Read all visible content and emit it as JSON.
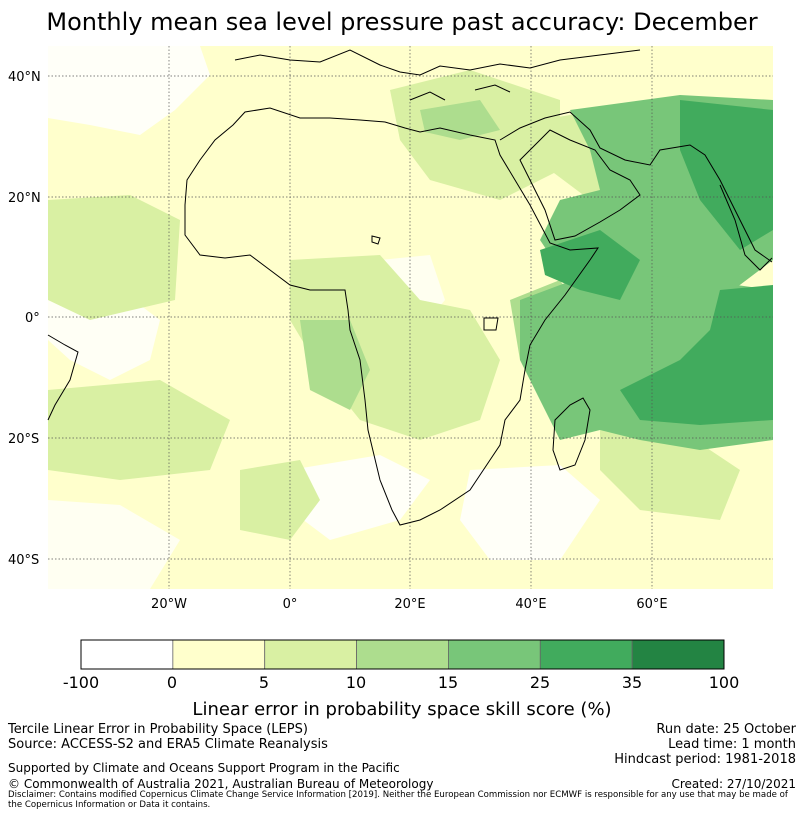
{
  "title": "Monthly mean sea level pressure past accuracy: December",
  "map": {
    "lat_labels": [
      "40°N",
      "20°N",
      "0°",
      "20°S",
      "40°S"
    ],
    "lon_labels": [
      "20°W",
      "0°",
      "20°E",
      "40°E",
      "60°E"
    ],
    "lat_values": [
      40,
      20,
      0,
      -20,
      -40
    ],
    "lon_values": [
      -20,
      0,
      20,
      40,
      60
    ],
    "extent": {
      "lon_min": -40,
      "lon_max": 80,
      "lat_min": -45,
      "lat_max": 45
    }
  },
  "colorbar": {
    "title": "Linear error in probability space skill score (%)",
    "bounds": [
      "-100",
      "0",
      "5",
      "10",
      "15",
      "25",
      "35",
      "100"
    ],
    "colors": [
      "#ffffff",
      "#ffffcc",
      "#d9f0a3",
      "#addd8e",
      "#78c679",
      "#41ab5d",
      "#238443"
    ]
  },
  "footer": {
    "line1": "Tercile Linear Error in Probability Space (LEPS)",
    "line2": "Source: ACCESS-S2 and ERA5 Climate Reanalysis",
    "line3": "Supported by Climate and Oceans Support Program in the Pacific",
    "line4": "© Commonwealth of Australia 2021, Australian Bureau of Meteorology",
    "run_date": "Run date: 25 October",
    "lead_time": "Lead time: 1 month",
    "hindcast": "Hindcast period: 1981-2018",
    "created": "Created: 27/10/2021",
    "disclaimer": "Disclaimer: Contains modified Copernicus Climate Change Service Information [2019]. Neither the European Commission nor ECMWF is responsible for any use that may be made of the Copernicus Information or Data it contains."
  }
}
